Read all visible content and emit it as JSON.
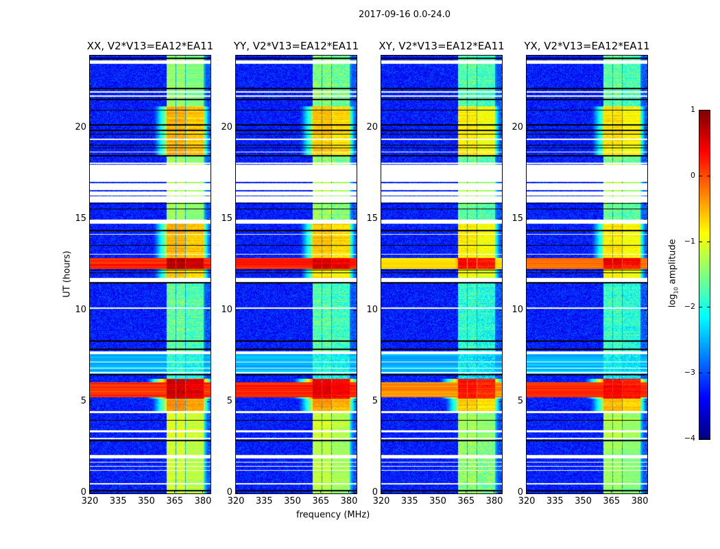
{
  "chart_data": {
    "type": "heatmap",
    "title": "2017-09-16 0.0-24.0",
    "xlabel": "frequency (MHz)",
    "ylabel": "UT (hours)",
    "xlim": [
      320,
      384
    ],
    "ylim": [
      0,
      24
    ],
    "xticks": [
      320,
      335,
      350,
      365,
      380
    ],
    "yticks": [
      0,
      5,
      10,
      15,
      20
    ],
    "colorbar": {
      "label_prefix": "log",
      "label_sub": "10",
      "label_suffix": " amplitude",
      "clim": [
        -4,
        1
      ],
      "ticks": [
        1,
        0,
        -1,
        -2,
        -3,
        -4
      ],
      "tick_labels": [
        "1",
        "0",
        "−1",
        "−2",
        "−3",
        "−4"
      ],
      "colormap": "jet"
    },
    "panels": [
      {
        "title": "XX, V2*V13=EA12*EA11",
        "band_offset": 0.0,
        "rfi_12h": 0.2,
        "rfi_5h": 0.15
      },
      {
        "title": "YY, V2*V13=EA12*EA11",
        "band_offset": -0.1,
        "rfi_12h": 0.25,
        "rfi_5h": 0.2
      },
      {
        "title": "XY, V2*V13=EA12*EA11",
        "band_offset": -0.3,
        "rfi_12h": -0.7,
        "rfi_5h": -0.3
      },
      {
        "title": "YX, V2*V13=EA12*EA11",
        "band_offset": -0.25,
        "rfi_12h": -0.2,
        "rfi_5h": 0.1
      }
    ],
    "background_level": -3.25,
    "subbands_mhz": [
      [
        360.7,
        365.6
      ],
      [
        365.9,
        370.6
      ],
      [
        370.9,
        375.5
      ],
      [
        375.8,
        380.3
      ]
    ],
    "band_level_segments": [
      {
        "t": [
          0,
          3
        ],
        "level": -1.1
      },
      {
        "t": [
          3,
          4.4
        ],
        "level": -1.0
      },
      {
        "t": [
          4.4,
          5.2
        ],
        "level": -0.3
      },
      {
        "t": [
          5.2,
          6.3
        ],
        "level": 0.6
      },
      {
        "t": [
          6.3,
          7.8
        ],
        "level": -1.9
      },
      {
        "t": [
          7.8,
          11.6
        ],
        "level": -1.6
      },
      {
        "t": [
          11.6,
          12.3
        ],
        "level": -0.6
      },
      {
        "t": [
          12.3,
          12.9
        ],
        "level": 0.7
      },
      {
        "t": [
          12.9,
          14.8
        ],
        "level": -0.5
      },
      {
        "t": [
          14.8,
          16.0
        ],
        "level": -1.3
      },
      {
        "t": [
          16.0,
          18.1
        ],
        "level": -1.0
      },
      {
        "t": [
          18.1,
          18.5
        ],
        "level": -1.3
      },
      {
        "t": [
          18.5,
          21.2
        ],
        "level": -0.5
      },
      {
        "t": [
          21.2,
          24
        ],
        "level": -1.4
      }
    ],
    "broadband_rfi_hours": [
      [
        12.3,
        12.9
      ],
      [
        5.25,
        6.1
      ]
    ],
    "weak_broadband_hours": [
      [
        6.55,
        7.65
      ]
    ],
    "flagged_hours": [
      [
        23.55,
        23.74
      ],
      [
        21.97,
        22.03
      ],
      [
        21.75,
        21.8
      ],
      [
        19.38,
        19.45
      ],
      [
        18.68,
        18.74
      ],
      [
        18.05,
        18.12
      ],
      [
        15.95,
        18.0
      ],
      [
        14.8,
        15.0
      ],
      [
        14.18,
        14.23
      ],
      [
        13.08,
        13.13
      ],
      [
        11.6,
        11.8
      ],
      [
        10.13,
        10.18
      ],
      [
        7.65,
        7.8
      ],
      [
        7.2,
        7.24
      ],
      [
        6.85,
        6.9
      ],
      [
        6.6,
        6.64
      ],
      [
        4.4,
        4.5
      ],
      [
        3.35,
        3.45
      ],
      [
        2.98,
        3.03
      ],
      [
        1.9,
        2.1
      ],
      [
        1.68,
        1.72
      ],
      [
        1.47,
        1.51
      ],
      [
        1.24,
        1.28
      ],
      [
        0.5,
        0.55
      ]
    ],
    "unflagged_rows_in_gap_hours": [
      17.05,
      16.6,
      16.3
    ],
    "dropout_rows_hours": [
      23.85,
      22.2,
      21.6,
      21.0,
      20.2,
      19.9,
      19.7,
      19.1,
      18.95,
      18.5,
      16.1,
      15.9,
      15.6,
      14.4,
      13.6,
      12.25,
      12.1,
      11.55,
      8.35,
      7.9,
      6.5,
      4.0,
      2.9,
      0.15
    ]
  }
}
